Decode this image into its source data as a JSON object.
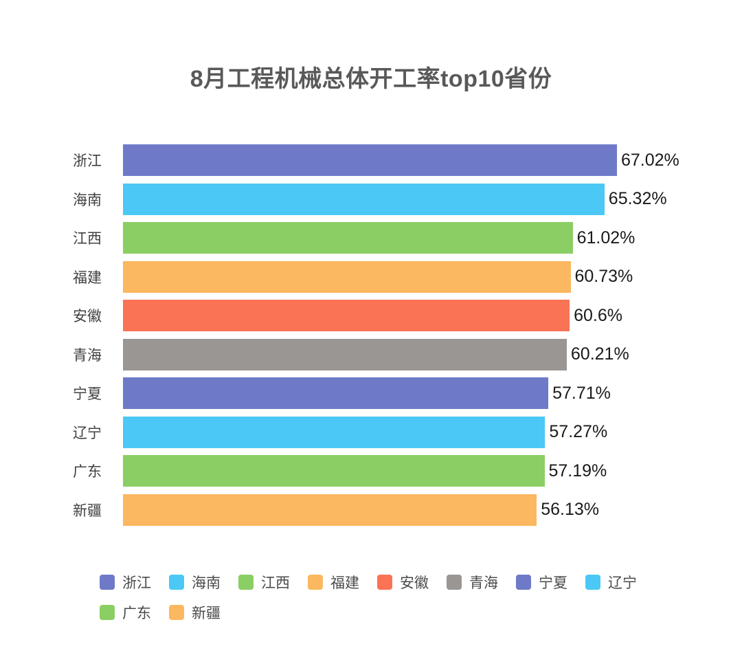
{
  "chart": {
    "title": "8月工程机械总体开工率top10省份"
  },
  "chart_data": {
    "type": "bar",
    "orientation": "horizontal",
    "title": "8月工程机械总体开工率top10省份",
    "xlabel": "",
    "ylabel": "",
    "categories": [
      "浙江",
      "海南",
      "江西",
      "福建",
      "安徽",
      "青海",
      "宁夏",
      "辽宁",
      "广东",
      "新疆"
    ],
    "values": [
      67.02,
      65.32,
      61.02,
      60.73,
      60.6,
      60.21,
      57.71,
      57.27,
      57.19,
      56.13
    ],
    "value_labels": [
      "67.02%",
      "65.32%",
      "61.02%",
      "60.73%",
      "60.6%",
      "60.21%",
      "57.71%",
      "57.27%",
      "57.19%",
      "56.13%"
    ],
    "unit": "%",
    "xlim": [
      0,
      67.02
    ],
    "grid": false,
    "axis_ticks_visible": false,
    "bar_colors": [
      "#6E7AC8",
      "#4BC8F5",
      "#8BCE63",
      "#FBB860",
      "#FA7355",
      "#999693",
      "#6E7AC8",
      "#4BC8F5",
      "#8BCE63",
      "#FBB860"
    ],
    "palette": [
      "#6E7AC8",
      "#4BC8F5",
      "#8BCE63",
      "#FBB860",
      "#FA7355",
      "#999693"
    ],
    "legend_position": "bottom",
    "legend": [
      {
        "label": "浙江",
        "color": "#6E7AC8"
      },
      {
        "label": "海南",
        "color": "#4BC8F5"
      },
      {
        "label": "江西",
        "color": "#8BCE63"
      },
      {
        "label": "福建",
        "color": "#FBB860"
      },
      {
        "label": "安徽",
        "color": "#FA7355"
      },
      {
        "label": "青海",
        "color": "#999693"
      },
      {
        "label": "宁夏",
        "color": "#6E7AC8"
      },
      {
        "label": "辽宁",
        "color": "#4BC8F5"
      },
      {
        "label": "广东",
        "color": "#8BCE63"
      },
      {
        "label": "新疆",
        "color": "#FBB860"
      }
    ],
    "style": {
      "title_color": "#595959",
      "category_label_color": "#404040",
      "value_label_color": "#1a1a1a",
      "legend_label_color": "#4a4a4a",
      "background": "#ffffff"
    }
  }
}
